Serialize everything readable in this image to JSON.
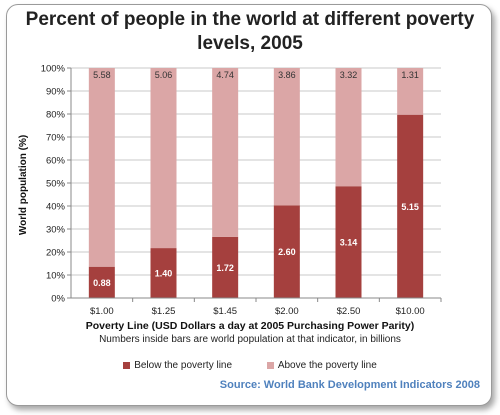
{
  "title": "Percent of people in the world at different poverty levels, 2005",
  "source": "Source: World Bank Development Indicators 2008",
  "colors": {
    "below": "#a5403e",
    "above": "#dba6a6",
    "grid": "#c8c8c8",
    "axis": "#888888"
  },
  "chart_data": {
    "type": "bar",
    "stacked": true,
    "title": "Percent of people in the world at different poverty levels, 2005",
    "xlabel": "Poverty Line (USD Dollars a day at 2005 Purchasing Power Parity)",
    "ylabel": "World population (%)",
    "note": "Numbers inside bars are world population at that indicator, in billions",
    "categories": [
      "$1.00",
      "$1.25",
      "$1.45",
      "$2.00",
      "$2.50",
      "$10.00"
    ],
    "ylim": [
      0,
      100
    ],
    "yticks": [
      "0%",
      "10%",
      "20%",
      "30%",
      "40%",
      "50%",
      "60%",
      "70%",
      "80%",
      "90%",
      "100%"
    ],
    "grid": true,
    "legend_position": "bottom",
    "series": [
      {
        "name": "Below the poverty line",
        "values": [
          13.6,
          21.7,
          26.6,
          40.3,
          48.6,
          79.7
        ],
        "labels": [
          "0.88",
          "1.40",
          "1.72",
          "2.60",
          "3.14",
          "5.15"
        ]
      },
      {
        "name": "Above the poverty line",
        "values": [
          86.4,
          78.3,
          73.4,
          59.7,
          51.4,
          20.3
        ],
        "labels": [
          "5.58",
          "5.06",
          "4.74",
          "3.86",
          "3.32",
          "1.31"
        ]
      }
    ]
  }
}
